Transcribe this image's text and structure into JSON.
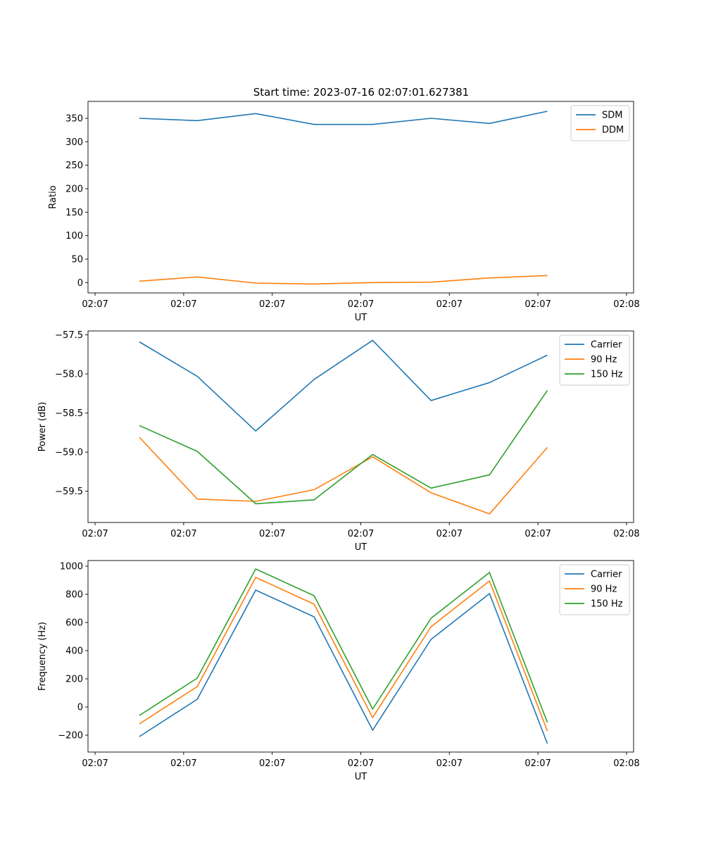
{
  "figure_title": "Start time: 2023-07-16 02:07:01.627381",
  "chart_data": [
    {
      "type": "line",
      "title": "Start time: 2023-07-16 02:07:01.627381",
      "xlabel": "UT",
      "ylabel": "Ratio",
      "x_tick_labels": [
        "02:07",
        "02:07",
        "02:07",
        "02:07",
        "02:07",
        "02:07",
        "02:08"
      ],
      "xlim": [
        -0.12,
        9.12
      ],
      "x_ticks": [
        0,
        1.5,
        3,
        4.5,
        6,
        7.5,
        9
      ],
      "x": [
        0.75,
        1.73,
        2.72,
        3.71,
        4.7,
        5.69,
        6.68,
        7.66
      ],
      "ylim": [
        -22,
        386
      ],
      "y_ticks": [
        0,
        50,
        100,
        150,
        200,
        250,
        300,
        350
      ],
      "legend_position": "top-right",
      "series": [
        {
          "name": "SDM",
          "color": "#1f77b4",
          "values": [
            350,
            345,
            360,
            337,
            337,
            350,
            339,
            365
          ]
        },
        {
          "name": "DDM",
          "color": "#ff7f0e",
          "values": [
            3,
            12,
            -1,
            -3,
            0,
            1,
            10,
            15
          ]
        }
      ]
    },
    {
      "type": "line",
      "title": "",
      "xlabel": "UT",
      "ylabel": "Power (dB)",
      "x_tick_labels": [
        "02:07",
        "02:07",
        "02:07",
        "02:07",
        "02:07",
        "02:07",
        "02:08"
      ],
      "xlim": [
        -0.12,
        9.12
      ],
      "x_ticks": [
        0,
        1.5,
        3,
        4.5,
        6,
        7.5,
        9
      ],
      "x": [
        0.75,
        1.73,
        2.72,
        3.71,
        4.7,
        5.69,
        6.68,
        7.66
      ],
      "ylim": [
        -59.9,
        -57.45
      ],
      "y_ticks": [
        -59.5,
        -59.0,
        -58.5,
        -58.0,
        -57.5
      ],
      "y_tick_labels": [
        "−59.5",
        "−59.0",
        "−58.5",
        "−58.0",
        "−57.5"
      ],
      "legend_position": "top-right",
      "series": [
        {
          "name": "Carrier",
          "color": "#1f77b4",
          "values": [
            -57.59,
            -58.03,
            -58.73,
            -58.07,
            -57.57,
            -58.34,
            -58.11,
            -57.76
          ]
        },
        {
          "name": "90 Hz",
          "color": "#ff7f0e",
          "values": [
            -58.81,
            -59.6,
            -59.63,
            -59.48,
            -59.06,
            -59.52,
            -59.79,
            -58.94
          ]
        },
        {
          "name": "150 Hz",
          "color": "#2ca02c",
          "values": [
            -58.66,
            -58.99,
            -59.66,
            -59.61,
            -59.03,
            -59.46,
            -59.29,
            -58.21
          ]
        }
      ]
    },
    {
      "type": "line",
      "title": "",
      "xlabel": "UT",
      "ylabel": "Frequency (Hz)",
      "x_tick_labels": [
        "02:07",
        "02:07",
        "02:07",
        "02:07",
        "02:07",
        "02:07",
        "02:08"
      ],
      "xlim": [
        -0.12,
        9.12
      ],
      "x_ticks": [
        0,
        1.5,
        3,
        4.5,
        6,
        7.5,
        9
      ],
      "x": [
        0.75,
        1.73,
        2.72,
        3.71,
        4.7,
        5.69,
        6.68,
        7.66
      ],
      "ylim": [
        -320,
        1040
      ],
      "y_ticks": [
        -200,
        0,
        200,
        400,
        600,
        800,
        1000
      ],
      "y_tick_labels": [
        "−200",
        "0",
        "200",
        "400",
        "600",
        "800",
        "1000"
      ],
      "legend_position": "top-right",
      "series": [
        {
          "name": "Carrier",
          "color": "#1f77b4",
          "values": [
            -210,
            55,
            830,
            640,
            -165,
            480,
            805,
            -260
          ]
        },
        {
          "name": "90 Hz",
          "color": "#ff7f0e",
          "values": [
            -120,
            145,
            920,
            730,
            -75,
            570,
            895,
            -170
          ]
        },
        {
          "name": "150 Hz",
          "color": "#2ca02c",
          "values": [
            -60,
            205,
            980,
            790,
            -15,
            630,
            955,
            -110
          ]
        }
      ]
    }
  ]
}
